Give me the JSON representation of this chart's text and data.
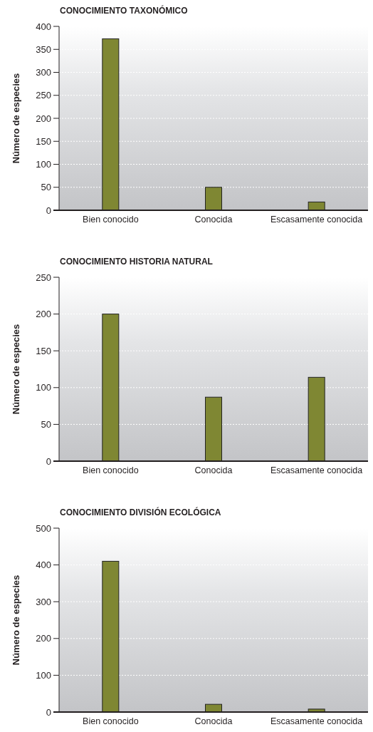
{
  "chart_data": [
    {
      "type": "bar",
      "title": "CONOCIMIENTO TAXONÓMICO",
      "ylabel": "Número de especies",
      "categories": [
        "Bien conocido",
        "Conocida",
        "Escasamente conocida"
      ],
      "values": [
        373,
        50,
        18
      ],
      "color": "#7f8733",
      "ylim": [
        0,
        400
      ],
      "yticks": [
        0,
        50,
        100,
        150,
        200,
        250,
        300,
        350,
        400
      ],
      "grid": "y"
    },
    {
      "type": "bar",
      "title": "CONOCIMIENTO HISTORIA NATURAL",
      "ylabel": "Número de especies",
      "categories": [
        "Bien conocido",
        "Conocida",
        "Escasamente conocida"
      ],
      "values": [
        200,
        87,
        114
      ],
      "color": "#7f8733",
      "ylim": [
        0,
        250
      ],
      "yticks": [
        0,
        50,
        100,
        150,
        200,
        250
      ],
      "grid": "y"
    },
    {
      "type": "bar",
      "title": "CONOCIMIENTO DIVISIÓN ECOLÓGICA",
      "ylabel": "Número de especies",
      "categories": [
        "Bien conocido",
        "Conocida",
        "Escasamente conocida"
      ],
      "values": [
        410,
        21,
        8
      ],
      "color": "#7f8733",
      "ylim": [
        0,
        500
      ],
      "yticks": [
        0,
        100,
        200,
        300,
        400,
        500
      ],
      "grid": "y"
    }
  ]
}
